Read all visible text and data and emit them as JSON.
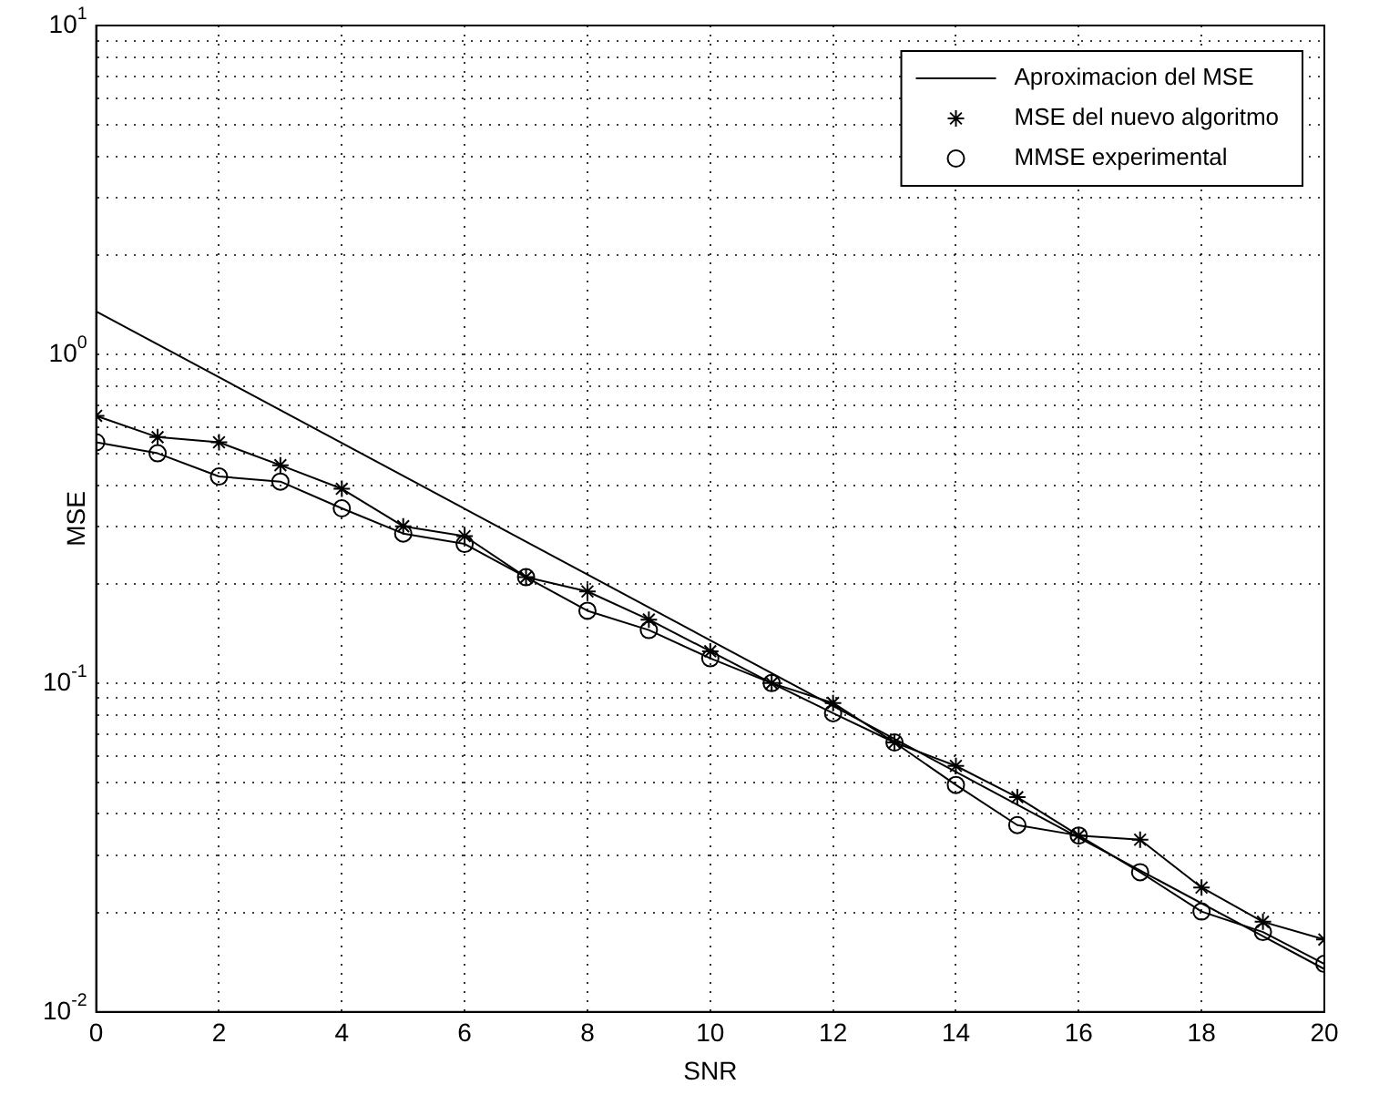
{
  "chart_data": {
    "type": "line",
    "xlabel": "SNR",
    "ylabel": "MSE",
    "log": "y",
    "grid": true,
    "legend": "top right",
    "x": [
      0,
      1,
      2,
      3,
      4,
      5,
      6,
      7,
      8,
      9,
      10,
      11,
      12,
      13,
      14,
      15,
      16,
      17,
      18,
      19,
      20
    ],
    "xlim": [
      0,
      20
    ],
    "xticks": [
      0,
      2,
      4,
      6,
      8,
      10,
      12,
      14,
      16,
      18,
      20
    ],
    "ylim": [
      0.01,
      10
    ],
    "yticks": [
      {
        "value": 0.01,
        "label": "10$^{-2}$"
      },
      {
        "value": 0.02,
        "label": null
      },
      {
        "value": 0.03,
        "label": null
      },
      {
        "value": 0.04,
        "label": null
      },
      {
        "value": 0.05,
        "label": null
      },
      {
        "value": 0.06,
        "label": null
      },
      {
        "value": 0.07,
        "label": null
      },
      {
        "value": 0.08,
        "label": null
      },
      {
        "value": 0.09,
        "label": null
      },
      {
        "value": 0.1,
        "label": "10$^{-1}$"
      },
      {
        "value": 0.2,
        "label": null
      },
      {
        "value": 0.3,
        "label": null
      },
      {
        "value": 0.4,
        "label": null
      },
      {
        "value": 0.5,
        "label": null
      },
      {
        "value": 0.6,
        "label": null
      },
      {
        "value": 0.7,
        "label": null
      },
      {
        "value": 0.8,
        "label": null
      },
      {
        "value": 0.9,
        "label": null
      },
      {
        "value": 1,
        "label": "10$^{0}$"
      },
      {
        "value": 2,
        "label": null
      },
      {
        "value": 3,
        "label": null
      },
      {
        "value": 4,
        "label": null
      },
      {
        "value": 5,
        "label": null
      },
      {
        "value": 6,
        "label": null
      },
      {
        "value": 7,
        "label": null
      },
      {
        "value": 8,
        "label": null
      },
      {
        "value": 9,
        "label": null
      },
      {
        "value": 10,
        "label": "10$^{1}$"
      }
    ],
    "series": [
      {
        "name": "Aproximacion del MSE",
        "color": "#000000",
        "marker": "none",
        "x": [
          0,
          20
        ],
        "values": [
          1.35,
          0.0135
        ]
      },
      {
        "name": "MSE del nuevo algoritmo",
        "color": "#000000",
        "marker": "cross",
        "values": [
          0.65,
          0.56,
          0.54,
          0.46,
          0.39,
          0.3,
          0.28,
          0.21,
          0.19,
          0.156,
          0.125,
          0.1,
          0.087,
          0.066,
          0.056,
          0.045,
          0.0344,
          0.0334,
          0.0239,
          0.0188,
          0.0166
        ]
      },
      {
        "name": "MMSE experimental",
        "color": "#000000",
        "marker": "circle",
        "values": [
          0.54,
          0.5,
          0.425,
          0.41,
          0.34,
          0.285,
          0.265,
          0.21,
          0.166,
          0.145,
          0.119,
          0.1,
          0.081,
          0.066,
          0.049,
          0.037,
          0.0344,
          0.0266,
          0.0202,
          0.0175,
          0.014
        ]
      }
    ]
  }
}
